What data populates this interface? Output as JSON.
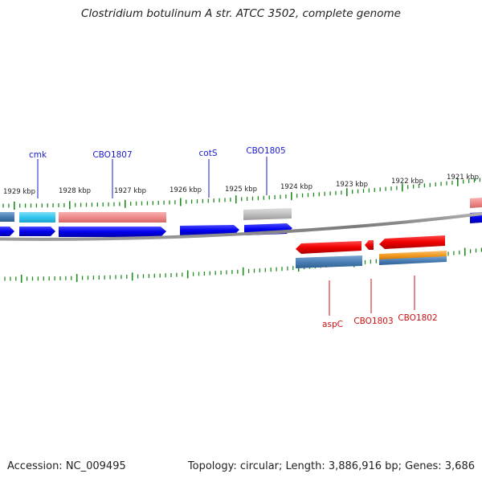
{
  "title": "Clostridium botulinum A str. ATCC 3502, complete genome",
  "footer": {
    "accession": "Accession: NC_009495",
    "topology": "Topology: circular; Length: 3,886,916 bp; Genes: 3,686"
  },
  "colors": {
    "forward_gene": "#0000ee",
    "reverse_gene": "#ee0000",
    "forward_label": "#1a1acc",
    "reverse_label": "#cc1111",
    "tick": "#1f8a1f",
    "backbone": "#888888",
    "cds_pink": "#f08a8a",
    "cds_cyan": "#33c7f0",
    "cds_gray": "#c0c0c0",
    "cds_steel": "#4a7fb5",
    "cds_orange": "#f39a1f"
  },
  "scale": {
    "unit": "kbp",
    "labels": [
      {
        "kbp": 1929,
        "text": "1929 kbp"
      },
      {
        "kbp": 1928,
        "text": "1928 kbp"
      },
      {
        "kbp": 1927,
        "text": "1927 kbp"
      },
      {
        "kbp": 1926,
        "text": "1926 kbp"
      },
      {
        "kbp": 1925,
        "text": "1925 kbp"
      },
      {
        "kbp": 1924,
        "text": "1924 kbp"
      },
      {
        "kbp": 1923,
        "text": "1923 kbp"
      },
      {
        "kbp": 1922,
        "text": "1922 kbp"
      },
      {
        "kbp": 1921,
        "text": "1921 kbp"
      }
    ]
  },
  "genes": [
    {
      "name": "cmk",
      "strand": "forward",
      "start_kbp": 1928.9,
      "end_kbp": 1928.2,
      "labeled": true
    },
    {
      "name": "CBO1807",
      "strand": "forward",
      "start_kbp": 1928.1,
      "end_kbp": 1926.0,
      "labeled": true
    },
    {
      "name": "cotS",
      "strand": "forward",
      "start_kbp": 1925.9,
      "end_kbp": 1924.8,
      "labeled": true
    },
    {
      "name": "CBO1805",
      "strand": "forward",
      "start_kbp": 1924.7,
      "end_kbp": 1923.8,
      "labeled": true
    },
    {
      "name": "aspC",
      "strand": "reverse",
      "start_kbp": 1924.2,
      "end_kbp": 1923.0,
      "labeled": true
    },
    {
      "name": "CBO1803",
      "strand": "reverse",
      "start_kbp": 1922.9,
      "end_kbp": 1922.7,
      "labeled": true
    },
    {
      "name": "CBO1802",
      "strand": "reverse",
      "start_kbp": 1922.6,
      "end_kbp": 1921.4,
      "labeled": true
    }
  ],
  "features": [
    {
      "id": "cds-left-edge",
      "strand": "forward",
      "color_key": "cds_steel"
    },
    {
      "id": "cds-cmk",
      "strand": "forward",
      "color_key": "cds_cyan"
    },
    {
      "id": "cds-cbo1807",
      "strand": "forward",
      "color_key": "cds_pink"
    },
    {
      "id": "cds-cbo1805",
      "strand": "forward",
      "color_key": "cds_gray"
    },
    {
      "id": "cds-right-edge",
      "strand": "forward",
      "color_key": "cds_pink"
    },
    {
      "id": "cds-aspc",
      "strand": "reverse",
      "color_key": "cds_steel"
    },
    {
      "id": "cds-cbo1802-a",
      "strand": "reverse",
      "color_key": "cds_orange"
    },
    {
      "id": "cds-cbo1802-b",
      "strand": "reverse",
      "color_key": "cds_steel"
    }
  ]
}
